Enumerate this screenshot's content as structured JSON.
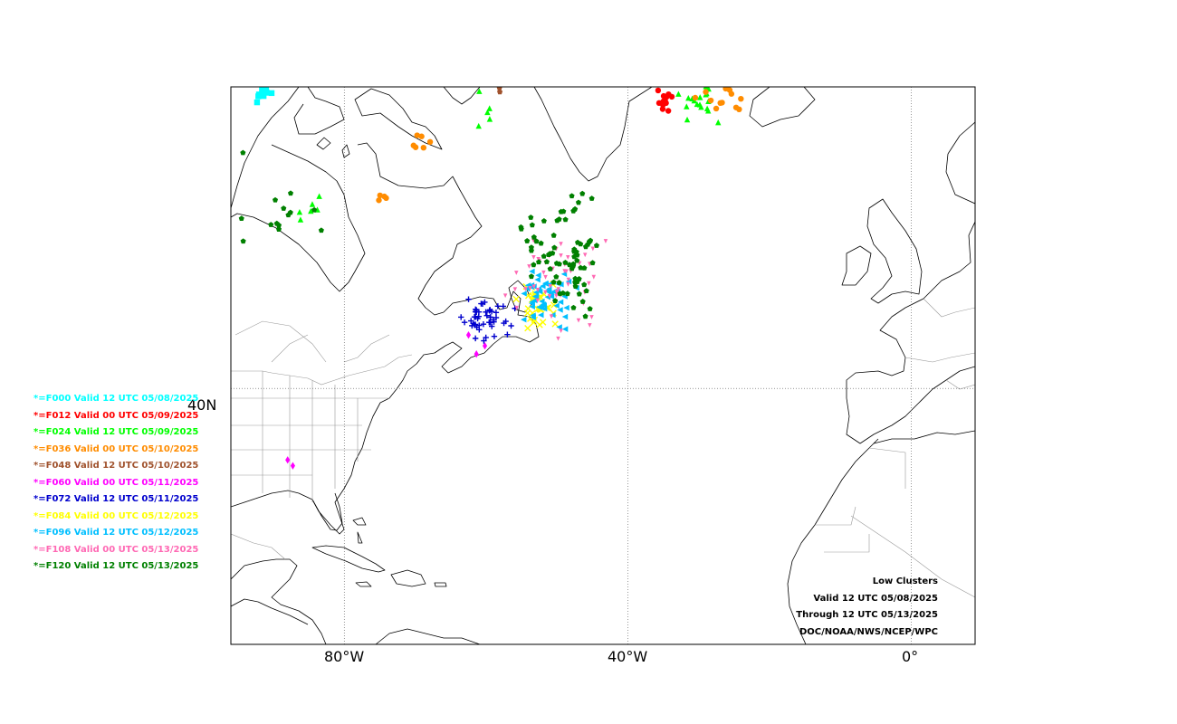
{
  "map": {
    "projection": "mercator",
    "extent": {
      "lon_min": -96,
      "lon_max": 9,
      "lat_min": 5.5,
      "lat_max": 66
    },
    "gridlines": {
      "longitudes": [
        -80,
        -40,
        0
      ],
      "latitudes": [
        40
      ]
    },
    "ticks": {
      "x": [
        {
          "lon": -80,
          "label": "80°W"
        },
        {
          "lon": -40,
          "label": "40°W"
        },
        {
          "lon": 0,
          "label": "0°"
        }
      ],
      "y": [
        {
          "lat": 40,
          "label": "40N"
        }
      ]
    }
  },
  "legend": {
    "items": [
      {
        "text": "*=F000 Valid 12 UTC 05/08/2025",
        "color": "#00ffff",
        "marker": "square"
      },
      {
        "text": "*=F012 Valid 00 UTC 05/09/2025",
        "color": "#ff0000",
        "marker": "circle"
      },
      {
        "text": "*=F024 Valid 12 UTC 05/09/2025",
        "color": "#00ff00",
        "marker": "triangle-up"
      },
      {
        "text": "*=F036 Valid 00 UTC 05/10/2025",
        "color": "#ff8c00",
        "marker": "hexagon"
      },
      {
        "text": "*=F048 Valid 12 UTC 05/10/2025",
        "color": "#a0522d",
        "marker": "star"
      },
      {
        "text": "*=F060 Valid 00 UTC 05/11/2025",
        "color": "#ff00ff",
        "marker": "diamond"
      },
      {
        "text": "*=F072 Valid 12 UTC 05/11/2025",
        "color": "#0000cd",
        "marker": "plus"
      },
      {
        "text": "*=F084 Valid 00 UTC 05/12/2025",
        "color": "#ffff00",
        "marker": "x"
      },
      {
        "text": "*=F096 Valid 12 UTC 05/12/2025",
        "color": "#00bfff",
        "marker": "triangle-left"
      },
      {
        "text": "*=F108 Valid 00 UTC 05/13/2025",
        "color": "#ff69b4",
        "marker": "tri-down"
      },
      {
        "text": "*=F120 Valid 12 UTC 05/13/2025",
        "color": "#008000",
        "marker": "pentagon"
      }
    ]
  },
  "info": {
    "lines": [
      "Low Clusters",
      "Valid 12 UTC 05/08/2025",
      "Through 12 UTC 05/13/2025",
      "DOC/NOAA/NWS/NCEP/WPC"
    ]
  },
  "clusters": [
    {
      "forecast": "F000",
      "center": [
        -91.5,
        65.6
      ],
      "spread": [
        0.9,
        0.3
      ],
      "count": 12
    },
    {
      "forecast": "F012",
      "center": [
        -34.8,
        65.0
      ],
      "spread": [
        1.0,
        0.35
      ],
      "count": 14
    },
    {
      "forecast": "F024",
      "center": [
        -30.0,
        65.0
      ],
      "spread": [
        1.5,
        0.6
      ],
      "count": 18
    },
    {
      "forecast": "F024",
      "center": [
        -60.0,
        65.0
      ],
      "spread": [
        1.2,
        1.2
      ],
      "count": 6
    },
    {
      "forecast": "F024",
      "center": [
        -87.0,
        57.6
      ],
      "spread": [
        2.0,
        0.5
      ],
      "count": 6
    },
    {
      "forecast": "F036",
      "center": [
        -26.0,
        65.6
      ],
      "spread": [
        2.0,
        0.5
      ],
      "count": 16
    },
    {
      "forecast": "F036",
      "center": [
        -69.5,
        62.5
      ],
      "spread": [
        0.6,
        0.5
      ],
      "count": 6
    },
    {
      "forecast": "F036",
      "center": [
        -74.8,
        58.5
      ],
      "spread": [
        0.4,
        0.3
      ],
      "count": 4
    },
    {
      "forecast": "F048",
      "center": [
        -58.0,
        66.0
      ],
      "spread": [
        0.6,
        0.2
      ],
      "count": 3
    },
    {
      "forecast": "F060",
      "center": [
        -62.0,
        45.5
      ],
      "spread": [
        1.8,
        1.0
      ],
      "count": 3
    },
    {
      "forecast": "F060",
      "center": [
        -87.5,
        30.5
      ],
      "spread": [
        1.0,
        0.6
      ],
      "count": 2
    },
    {
      "forecast": "F072",
      "center": [
        -60.0,
        47.5
      ],
      "spread": [
        1.8,
        0.8
      ],
      "count": 50
    },
    {
      "forecast": "F084",
      "center": [
        -53.0,
        48.8
      ],
      "spread": [
        1.2,
        1.1
      ],
      "count": 35
    },
    {
      "forecast": "F096",
      "center": [
        -51.5,
        49.8
      ],
      "spread": [
        1.8,
        1.3
      ],
      "count": 55
    },
    {
      "forecast": "F108",
      "center": [
        -50.0,
        51.0
      ],
      "spread": [
        2.8,
        2.6
      ],
      "count": 55
    },
    {
      "forecast": "F120",
      "center": [
        -49.0,
        53.5
      ],
      "spread": [
        2.5,
        2.3
      ],
      "count": 75
    },
    {
      "forecast": "F120",
      "center": [
        -89.0,
        56.5
      ],
      "spread": [
        3.5,
        2.0
      ],
      "count": 14
    }
  ]
}
